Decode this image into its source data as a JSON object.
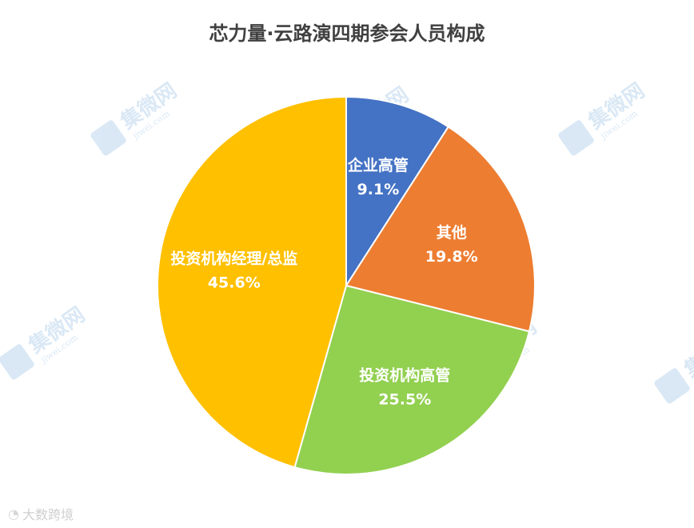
{
  "chart_data": {
    "type": "pie",
    "title": "芯力量·云路演四期参会人员构成",
    "slices": [
      {
        "label": "企业高管",
        "value": 9.1,
        "display": "9.1%",
        "color": "#4472C4"
      },
      {
        "label": "其他",
        "value": 19.8,
        "display": "19.8%",
        "color": "#ED7D31"
      },
      {
        "label": "投资机构高管",
        "value": 25.5,
        "display": "25.5%",
        "color": "#92D050"
      },
      {
        "label": "投资机构经理/总监",
        "value": 45.6,
        "display": "45.6%",
        "color": "#FFC000"
      }
    ]
  },
  "watermark": {
    "brand": "集微网",
    "url": "jiwei.com"
  },
  "footer": {
    "text": "大数跨境"
  }
}
